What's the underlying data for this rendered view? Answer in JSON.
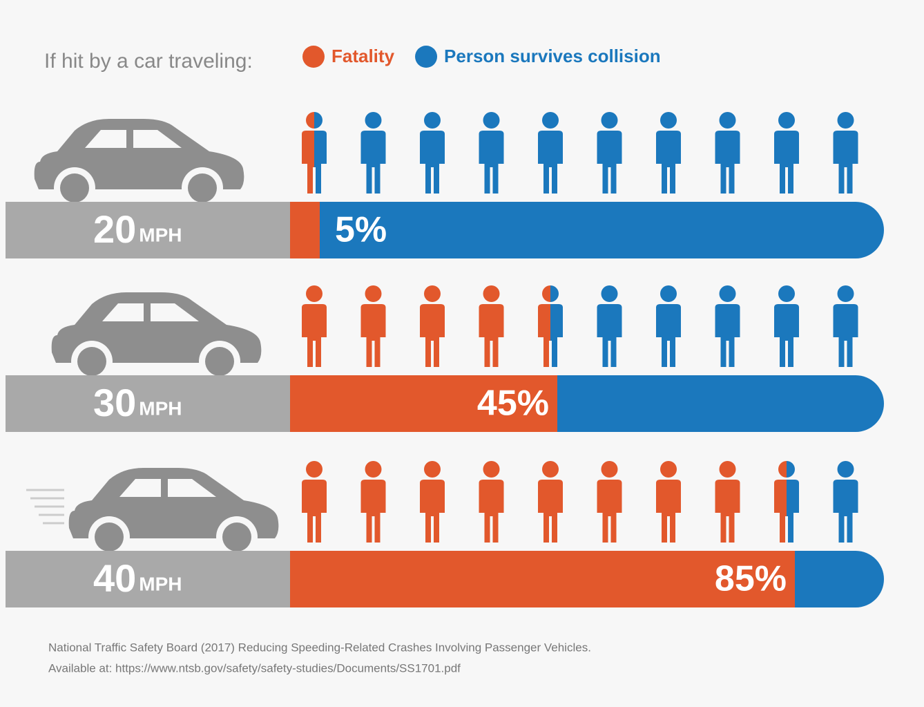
{
  "chart_data": {
    "type": "bar",
    "title": "If hit by a car traveling:",
    "categories": [
      "20",
      "30",
      "40"
    ],
    "category_unit": "MPH",
    "series": [
      {
        "name": "Fatality",
        "color": "#e2582c",
        "values": [
          5,
          45,
          85
        ],
        "value_labels": [
          "5%",
          "45%",
          "85%"
        ]
      },
      {
        "name": "Person survives collision",
        "color": "#1b78bd",
        "values": [
          95,
          55,
          15
        ]
      }
    ],
    "xlim": [
      0,
      100
    ],
    "legend": "top",
    "source": [
      "National Traffic Safety Board (2017) Reducing Speeding-Related Crashes Involving Passenger Vehicles.",
      "Available at: https://www.ntsb.gov/safety/safety-studies/Documents/SS1701.pdf"
    ]
  }
}
